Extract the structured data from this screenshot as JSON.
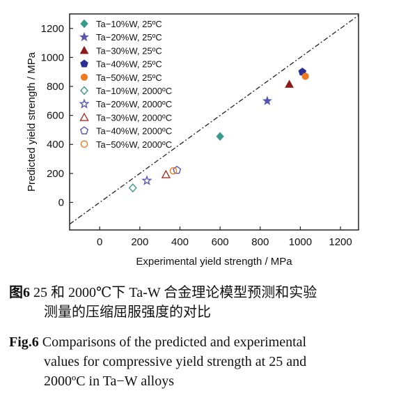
{
  "chart_data": {
    "type": "scatter",
    "xlabel": "Experimental yield strength / MPa",
    "ylabel": "Predicted yield strength / MPa",
    "xlim": [
      -150,
      1290
    ],
    "ylim": [
      -190,
      1300
    ],
    "x_ticks": [
      "0",
      "200",
      "400",
      "600",
      "800",
      "1000",
      "1200"
    ],
    "y_ticks": [
      "0",
      "200",
      "400",
      "600",
      "800",
      "1000",
      "1200"
    ],
    "reference_line": "y = x (dash-dot)",
    "legend_position": "top-left",
    "grid": false,
    "series": [
      {
        "name": "Ta−10%W, 25ºC",
        "marker": "diamond",
        "filled": true,
        "color": "#3a9a8c",
        "points": [
          {
            "x": 600,
            "y": 455
          }
        ]
      },
      {
        "name": "Ta−20%W, 25ºC",
        "marker": "star",
        "filled": true,
        "color": "#5a55b0",
        "points": [
          {
            "x": 835,
            "y": 700
          }
        ]
      },
      {
        "name": "Ta−30%W, 25ºC",
        "marker": "triangle",
        "filled": true,
        "color": "#8c1a1a",
        "points": [
          {
            "x": 945,
            "y": 815
          }
        ]
      },
      {
        "name": "Ta−40%W, 25ºC",
        "marker": "pentagon",
        "filled": true,
        "color": "#2b2f95",
        "points": [
          {
            "x": 1010,
            "y": 900
          }
        ]
      },
      {
        "name": "Ta−50%W, 25ºC",
        "marker": "circle",
        "filled": true,
        "color": "#ef7a22",
        "points": [
          {
            "x": 1025,
            "y": 870
          }
        ]
      },
      {
        "name": "Ta−10%W, 2000ºC",
        "marker": "diamond",
        "filled": false,
        "color": "#3a9a8c",
        "points": [
          {
            "x": 165,
            "y": 100
          }
        ]
      },
      {
        "name": "Ta−20%W, 2000ºC",
        "marker": "star",
        "filled": false,
        "color": "#5a55b0",
        "points": [
          {
            "x": 235,
            "y": 150
          }
        ]
      },
      {
        "name": "Ta−30%W, 2000ºC",
        "marker": "triangle",
        "filled": false,
        "color": "#a0352a",
        "points": [
          {
            "x": 330,
            "y": 192
          }
        ]
      },
      {
        "name": "Ta−40%W, 2000ºC",
        "marker": "pentagon",
        "filled": false,
        "color": "#5a55b0",
        "points": [
          {
            "x": 385,
            "y": 222
          }
        ]
      },
      {
        "name": "Ta−50%W, 2000ºC",
        "marker": "circle",
        "filled": false,
        "color": "#ef7a22",
        "points": [
          {
            "x": 367,
            "y": 218
          }
        ]
      }
    ]
  },
  "caption": {
    "cn_label": "图6",
    "cn_text": " 25 和 2000℃下 Ta-W 合金理论模型预测和实验",
    "cn_text2": "测量的压缩屈服强度的对比",
    "en_label": "Fig.6",
    "en_text": " Comparisons of the predicted and experimental",
    "en_text2": "values for compressive yield strength at 25 and",
    "en_text3": "2000ºC in Ta−W alloys"
  }
}
